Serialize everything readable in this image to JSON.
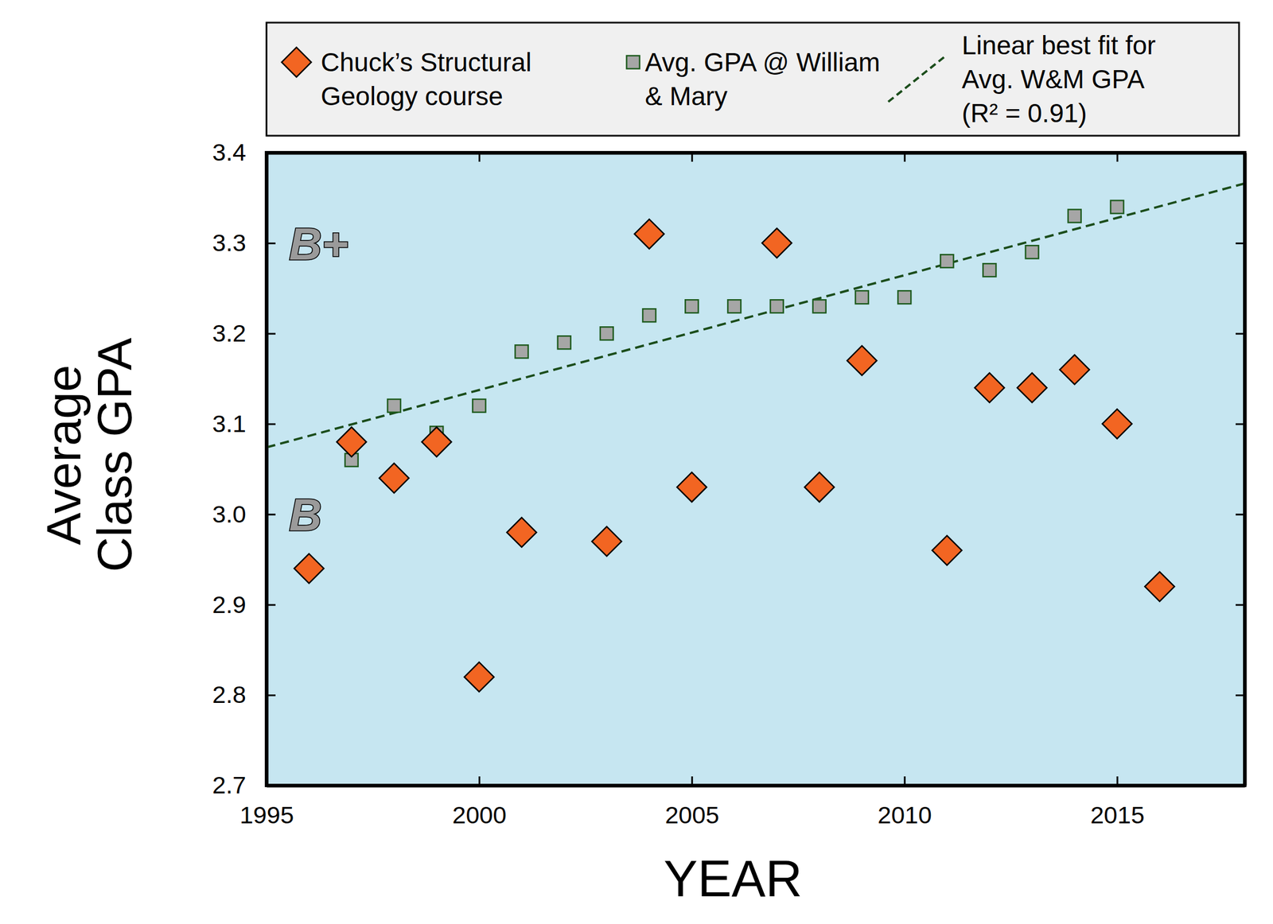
{
  "chart_data": {
    "type": "scatter",
    "xlabel": "YEAR",
    "ylabel": "Average Class GPA",
    "xlim": [
      1995,
      2018
    ],
    "ylim": [
      2.7,
      3.4
    ],
    "xticks": [
      1995,
      2000,
      2005,
      2010,
      2015
    ],
    "yticks": [
      2.7,
      2.8,
      2.9,
      {
        "value": 3,
        "label": "3.0"
      },
      3.1,
      3.2,
      3.3,
      3.4
    ],
    "grid": false,
    "legend": "top",
    "series": [
      {
        "name": "Chuck’s Structural Geology course",
        "type": "scatter",
        "marker": "diamond",
        "color": "#f26522",
        "x": [
          1996,
          1997,
          1998,
          1999,
          2000,
          2001,
          2003,
          2004,
          2005,
          2007,
          2008,
          2009,
          2011,
          2012,
          2013,
          2014,
          2015,
          2016
        ],
        "values": [
          2.94,
          3.08,
          3.04,
          3.08,
          2.82,
          2.98,
          2.97,
          3.31,
          3.03,
          3.3,
          3.03,
          3.17,
          2.96,
          3.14,
          3.14,
          3.16,
          3.1,
          2.92
        ]
      },
      {
        "name": "Avg. GPA @ William & Mary",
        "type": "scatter",
        "marker": "square",
        "color": "#a6a6a6",
        "x": [
          1997,
          1998,
          1999,
          2000,
          2001,
          2002,
          2003,
          2004,
          2005,
          2006,
          2007,
          2008,
          2009,
          2010,
          2011,
          2012,
          2013,
          2014,
          2015
        ],
        "values": [
          3.06,
          3.12,
          3.09,
          3.12,
          3.18,
          3.19,
          3.2,
          3.22,
          3.23,
          3.23,
          3.23,
          3.23,
          3.24,
          3.24,
          3.28,
          3.27,
          3.29,
          3.33,
          3.34
        ]
      },
      {
        "name": "Linear best fit for Avg. W&M GPA (R² = 0.91)",
        "type": "line",
        "line_style": "dashed",
        "color": "#1b4d1b",
        "x": [
          1995,
          2018
        ],
        "values": [
          3.074,
          3.366
        ]
      }
    ],
    "annotations": [
      {
        "text": "B+",
        "y": 3.3
      },
      {
        "text": "B",
        "y": 3.0
      }
    ]
  }
}
